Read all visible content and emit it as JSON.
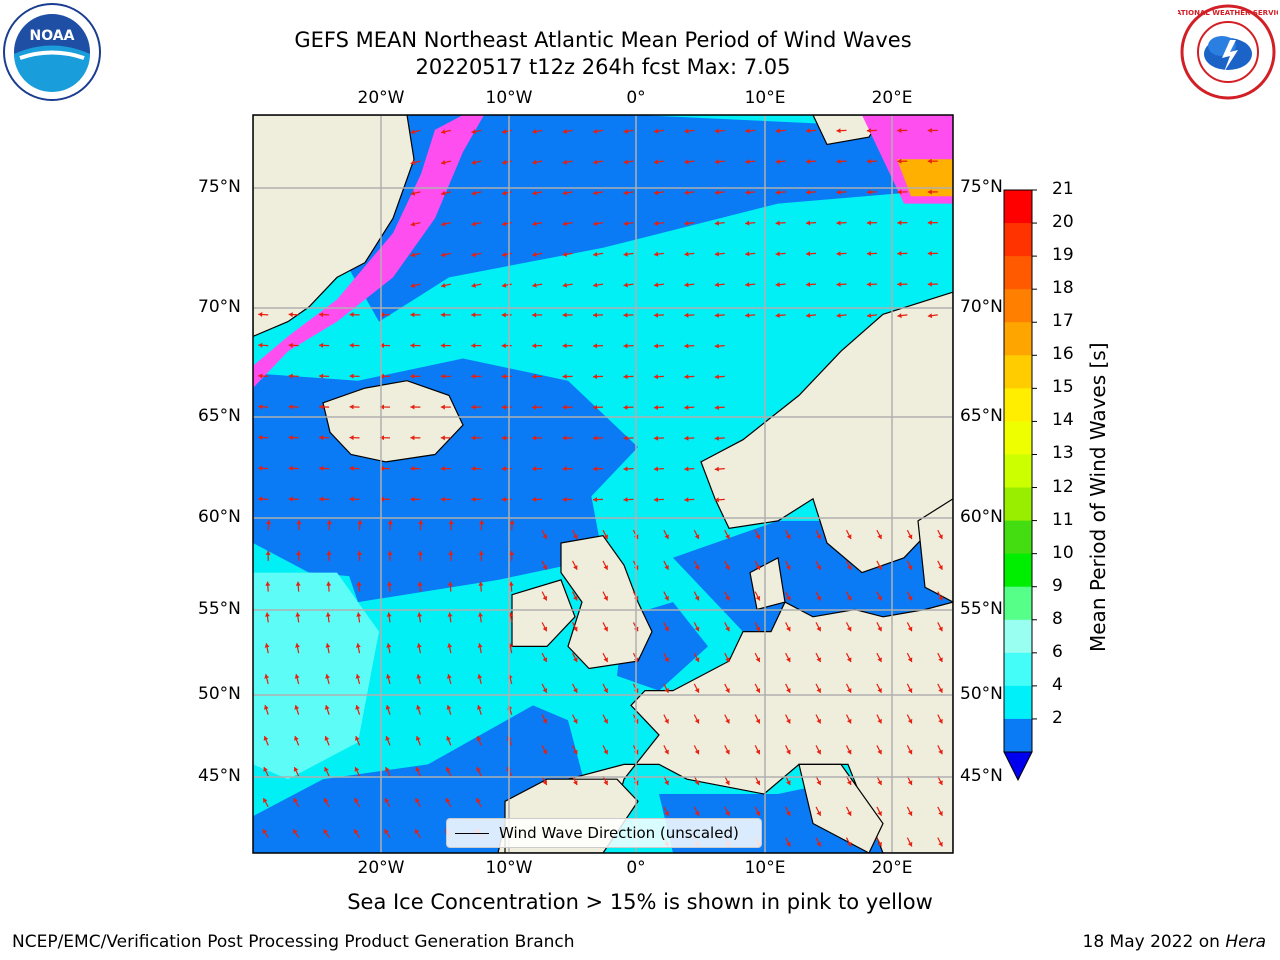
{
  "title": {
    "line1": "GEFS MEAN Northeast Atlantic Mean Period of Wind Waves",
    "line2": "20220517 t12z 264h fcst   Max: 7.05"
  },
  "map": {
    "lon_labels": [
      "20°W",
      "10°W",
      "0°",
      "10°E",
      "20°E"
    ],
    "lat_labels": [
      "75°N",
      "70°N",
      "65°N",
      "60°N",
      "55°N",
      "50°N",
      "45°N"
    ],
    "lon_range": [
      -30,
      25
    ],
    "lat_range": [
      41,
      78
    ],
    "colors": {
      "ocean_low": "#0a7af5",
      "ocean_mid": "#00f0f5",
      "ocean_high": "#5dfcf6",
      "land": "#efeddc",
      "ice_pink": "#ff4ef0",
      "ice_orange": "#ffb000",
      "arrow": "#e81e0e",
      "grid": "#b0b0b0"
    },
    "legend_label": "Wind Wave Direction (unscaled)"
  },
  "colorbar": {
    "label": "Mean Period of Wind Waves [s]",
    "ticks": [
      "21",
      "20",
      "19",
      "18",
      "17",
      "16",
      "15",
      "14",
      "13",
      "12",
      "11",
      "10",
      "9",
      "8",
      "6",
      "4",
      "2"
    ],
    "colors": [
      "#ff0000",
      "#ff3300",
      "#ff5a00",
      "#ff8000",
      "#ffa500",
      "#ffcc00",
      "#ffee00",
      "#eeff00",
      "#ccff00",
      "#99ee00",
      "#44dd11",
      "#00ee00",
      "#55ff88",
      "#99fff0",
      "#44fdf8",
      "#00f0fa",
      "#0a7af5"
    ],
    "extend_color": "#0000ee"
  },
  "footer": {
    "center": "Sea Ice Concentration > 15% is shown in pink to yellow",
    "left": "NCEP/EMC/Verification Post Processing Product Generation Branch",
    "right_date": "18 May 2022 on ",
    "right_machine": "Hera"
  },
  "logos": {
    "left": "NOAA",
    "right": "NATIONAL WEATHER SERVICE"
  }
}
